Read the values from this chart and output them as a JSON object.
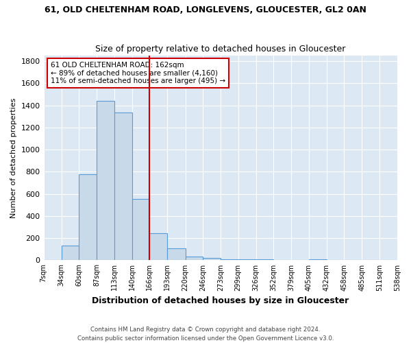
{
  "title": "61, OLD CHELTENHAM ROAD, LONGLEVENS, GLOUCESTER, GL2 0AN",
  "subtitle": "Size of property relative to detached houses in Gloucester",
  "xlabel": "Distribution of detached houses by size in Gloucester",
  "ylabel": "Number of detached properties",
  "footer1": "Contains HM Land Registry data © Crown copyright and database right 2024.",
  "footer2": "Contains public sector information licensed under the Open Government Licence v3.0.",
  "annotation_line1": "61 OLD CHELTENHAM ROAD: 162sqm",
  "annotation_line2": "← 89% of detached houses are smaller (4,160)",
  "annotation_line3": "11% of semi-detached houses are larger (495) →",
  "bar_color": "#c8d9ea",
  "bar_edge_color": "#5b9bd5",
  "highlight_color": "#cc0000",
  "bin_edges": [
    7,
    34,
    60,
    87,
    113,
    140,
    166,
    193,
    220,
    246,
    273,
    299,
    326,
    352,
    379,
    405,
    432,
    458,
    485,
    511,
    538
  ],
  "bar_heights": [
    5,
    130,
    775,
    1440,
    1335,
    555,
    245,
    110,
    35,
    20,
    10,
    10,
    10,
    5,
    0,
    10,
    0,
    0,
    0,
    5
  ],
  "ylim": [
    0,
    1850
  ],
  "yticks": [
    0,
    200,
    400,
    600,
    800,
    1000,
    1200,
    1400,
    1600,
    1800
  ],
  "background_color": "#ffffff",
  "plot_bg_color": "#dce9f5"
}
